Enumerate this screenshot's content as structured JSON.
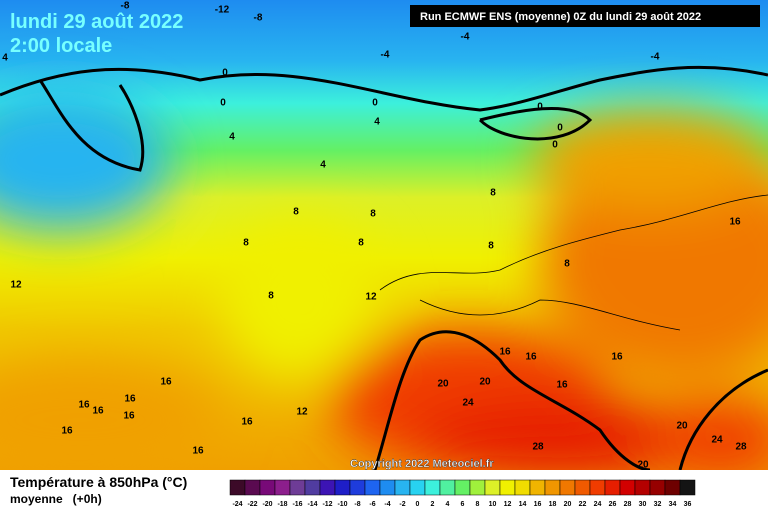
{
  "header": {
    "date": "lundi 29 août 2022",
    "time": "2:00 locale",
    "run": "Run ECMWF ENS (moyenne) 0Z du lundi 29 août 2022"
  },
  "copyright": "Copyright 2022 Meteociel.fr",
  "legend": {
    "title": "Température à 850hPa (°C)",
    "subtitle": "moyenne   (+0h)",
    "scale": [
      {
        "label": "-24",
        "color": "#3c0a28"
      },
      {
        "label": "-22",
        "color": "#5a0a50"
      },
      {
        "label": "-20",
        "color": "#780a78"
      },
      {
        "label": "-18",
        "color": "#8c1e8c"
      },
      {
        "label": "-16",
        "color": "#6e3c96"
      },
      {
        "label": "-14",
        "color": "#503ca0"
      },
      {
        "label": "-12",
        "color": "#3c14b4"
      },
      {
        "label": "-10",
        "color": "#1e1ec8"
      },
      {
        "label": "-8",
        "color": "#1e3cdc"
      },
      {
        "label": "-6",
        "color": "#1e64f0"
      },
      {
        "label": "-4",
        "color": "#1e8cf0"
      },
      {
        "label": "-2",
        "color": "#28b4f0"
      },
      {
        "label": "0",
        "color": "#28d2f0"
      },
      {
        "label": "2",
        "color": "#3cf0dc"
      },
      {
        "label": "4",
        "color": "#50f0a0"
      },
      {
        "label": "6",
        "color": "#64f064"
      },
      {
        "label": "8",
        "color": "#a0f03c"
      },
      {
        "label": "10",
        "color": "#dcf028"
      },
      {
        "label": "12",
        "color": "#f0f000"
      },
      {
        "label": "14",
        "color": "#f0dc00"
      },
      {
        "label": "16",
        "color": "#f0b400"
      },
      {
        "label": "18",
        "color": "#f09600"
      },
      {
        "label": "20",
        "color": "#f07800"
      },
      {
        "label": "22",
        "color": "#f05a00"
      },
      {
        "label": "24",
        "color": "#f03c00"
      },
      {
        "label": "26",
        "color": "#e61e00"
      },
      {
        "label": "28",
        "color": "#d20000"
      },
      {
        "label": "30",
        "color": "#b40000"
      },
      {
        "label": "32",
        "color": "#960000"
      },
      {
        "label": "34",
        "color": "#6e0000"
      },
      {
        "label": "36",
        "color": "#141414"
      }
    ]
  },
  "map_labels": [
    "-8",
    "-12",
    "-8",
    "-4",
    "-4",
    "-4",
    "4",
    "0",
    "0",
    "0",
    "0",
    "4",
    "4",
    "0",
    "0",
    "4",
    "8",
    "8",
    "8",
    "16",
    "8",
    "8",
    "8",
    "8",
    "12",
    "8",
    "12",
    "16",
    "16",
    "16",
    "16",
    "20",
    "20",
    "16",
    "16",
    "16",
    "16",
    "24",
    "16",
    "12",
    "16",
    "16",
    "20",
    "24",
    "16",
    "28",
    "28",
    "20"
  ]
}
